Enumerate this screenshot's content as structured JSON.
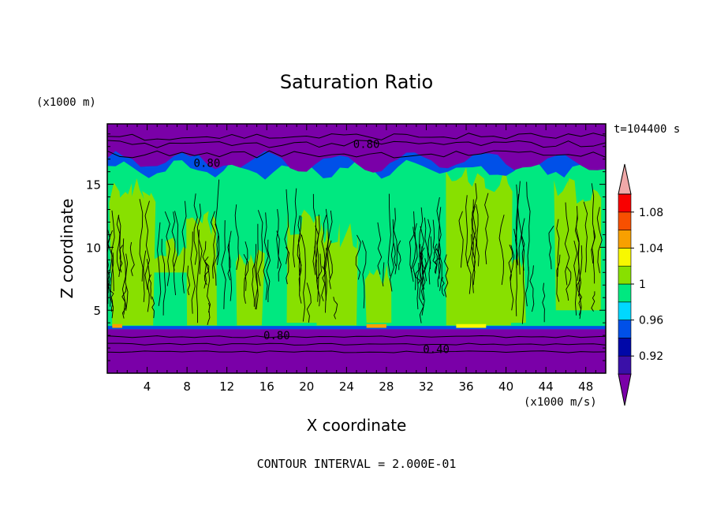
{
  "chart_data": {
    "type": "heatmap",
    "title": "Saturation Ratio",
    "xlabel": "X coordinate",
    "ylabel": "Z coordinate",
    "x_unit": "(x1000 m/s)",
    "y_unit": "(x1000 m)",
    "time_label": "t=104400 s",
    "footer": "CONTOUR INTERVAL = 2.000E-01",
    "xlim": [
      0,
      50
    ],
    "ylim": [
      0,
      19.8
    ],
    "x_ticks": [
      "4",
      "8",
      "12",
      "16",
      "20",
      "24",
      "28",
      "32",
      "36",
      "40",
      "44",
      "48"
    ],
    "y_ticks": [
      "5",
      "10",
      "15"
    ],
    "colorbar": {
      "colors": [
        "#7a00a8",
        "#3a10a8",
        "#0008a8",
        "#0050e8",
        "#00d8ff",
        "#00e880",
        "#88e000",
        "#f8f800",
        "#f8a000",
        "#f85000",
        "#f80000",
        "#f0a8a8"
      ],
      "labels": [
        "0.92",
        "0.96",
        "1",
        "1.04",
        "1.08"
      ]
    },
    "contour_labels": [
      "0.80",
      "0.80",
      "0.80",
      "0.40"
    ],
    "layers": [
      {
        "range": "0 - 3.5",
        "value": "< 0.92"
      },
      {
        "range": "3.5 - 16",
        "value": "0.96 - 1.00"
      },
      {
        "range": "16 - 19.8",
        "value": "< 0.92"
      }
    ]
  }
}
